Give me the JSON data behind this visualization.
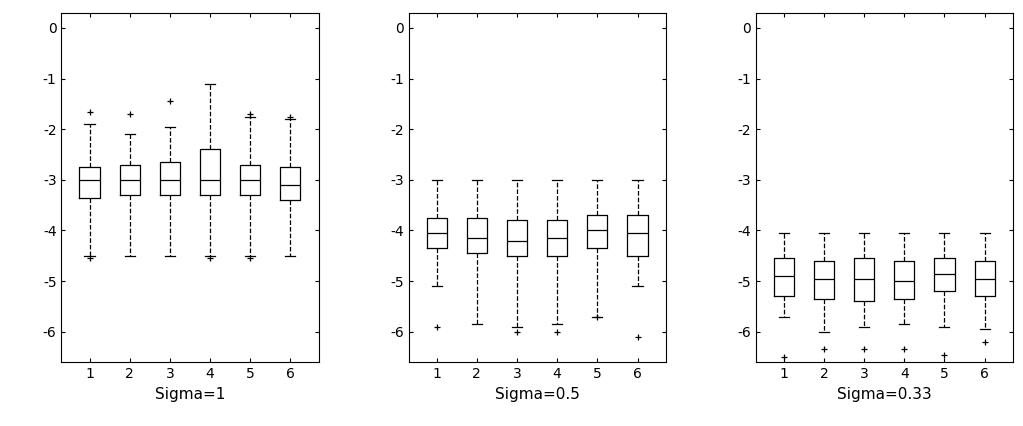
{
  "panels": [
    {
      "title": "Sigma=1",
      "ylim": [
        -6.6,
        0.3
      ],
      "yticks": [
        0,
        -1,
        -2,
        -3,
        -4,
        -5,
        -6
      ],
      "boxes": [
        {
          "whislo": -4.5,
          "q1": -3.35,
          "med": -3.0,
          "q3": -2.75,
          "whishi": -1.9,
          "fliers": [
            -4.55,
            -1.65
          ]
        },
        {
          "whislo": -4.5,
          "q1": -3.3,
          "med": -3.0,
          "q3": -2.7,
          "whishi": -2.1,
          "fliers": [
            -1.7
          ]
        },
        {
          "whislo": -4.5,
          "q1": -3.3,
          "med": -3.0,
          "q3": -2.65,
          "whishi": -1.95,
          "fliers": [
            -1.45
          ]
        },
        {
          "whislo": -4.5,
          "q1": -3.3,
          "med": -3.0,
          "q3": -2.4,
          "whishi": -1.1,
          "fliers": [
            -4.55
          ]
        },
        {
          "whislo": -4.5,
          "q1": -3.3,
          "med": -3.0,
          "q3": -2.7,
          "whishi": -1.75,
          "fliers": [
            -4.55,
            -1.7
          ]
        },
        {
          "whislo": -4.5,
          "q1": -3.4,
          "med": -3.1,
          "q3": -2.75,
          "whishi": -1.8,
          "fliers": [
            -1.75
          ]
        }
      ]
    },
    {
      "title": "Sigma=0.5",
      "ylim": [
        -6.6,
        0.3
      ],
      "yticks": [
        0,
        -1,
        -2,
        -3,
        -4,
        -5,
        -6
      ],
      "boxes": [
        {
          "whislo": -5.1,
          "q1": -4.35,
          "med": -4.05,
          "q3": -3.75,
          "whishi": -3.0,
          "fliers": [
            -5.9
          ]
        },
        {
          "whislo": -5.85,
          "q1": -4.45,
          "med": -4.15,
          "q3": -3.75,
          "whishi": -3.0,
          "fliers": []
        },
        {
          "whislo": -5.9,
          "q1": -4.5,
          "med": -4.2,
          "q3": -3.8,
          "whishi": -3.0,
          "fliers": [
            -6.0
          ]
        },
        {
          "whislo": -5.85,
          "q1": -4.5,
          "med": -4.15,
          "q3": -3.8,
          "whishi": -3.0,
          "fliers": [
            -6.0
          ]
        },
        {
          "whislo": -5.7,
          "q1": -4.35,
          "med": -4.0,
          "q3": -3.7,
          "whishi": -3.0,
          "fliers": [
            -5.7
          ]
        },
        {
          "whislo": -5.1,
          "q1": -4.5,
          "med": -4.05,
          "q3": -3.7,
          "whishi": -3.0,
          "fliers": [
            -6.1
          ]
        }
      ]
    },
    {
      "title": "Sigma=0.33",
      "ylim": [
        -6.6,
        0.3
      ],
      "yticks": [
        0,
        -1,
        -2,
        -3,
        -4,
        -5,
        -6
      ],
      "boxes": [
        {
          "whislo": -5.7,
          "q1": -5.3,
          "med": -4.9,
          "q3": -4.55,
          "whishi": -4.05,
          "fliers": [
            -6.5
          ]
        },
        {
          "whislo": -6.0,
          "q1": -5.35,
          "med": -4.95,
          "q3": -4.6,
          "whishi": -4.05,
          "fliers": [
            -6.35
          ]
        },
        {
          "whislo": -5.9,
          "q1": -5.4,
          "med": -4.95,
          "q3": -4.55,
          "whishi": -4.05,
          "fliers": [
            -6.35
          ]
        },
        {
          "whislo": -5.85,
          "q1": -5.35,
          "med": -5.0,
          "q3": -4.6,
          "whishi": -4.05,
          "fliers": [
            -6.35
          ]
        },
        {
          "whislo": -5.9,
          "q1": -5.2,
          "med": -4.85,
          "q3": -4.55,
          "whishi": -4.05,
          "fliers": [
            -6.45
          ]
        },
        {
          "whislo": -5.95,
          "q1": -5.3,
          "med": -4.95,
          "q3": -4.6,
          "whishi": -4.05,
          "fliers": [
            -6.2
          ]
        }
      ]
    }
  ],
  "line_color": "#000000",
  "flier_marker": "+",
  "background_color": "#ffffff",
  "figsize": [
    10.23,
    4.26
  ],
  "dpi": 100,
  "box_width": 0.5
}
